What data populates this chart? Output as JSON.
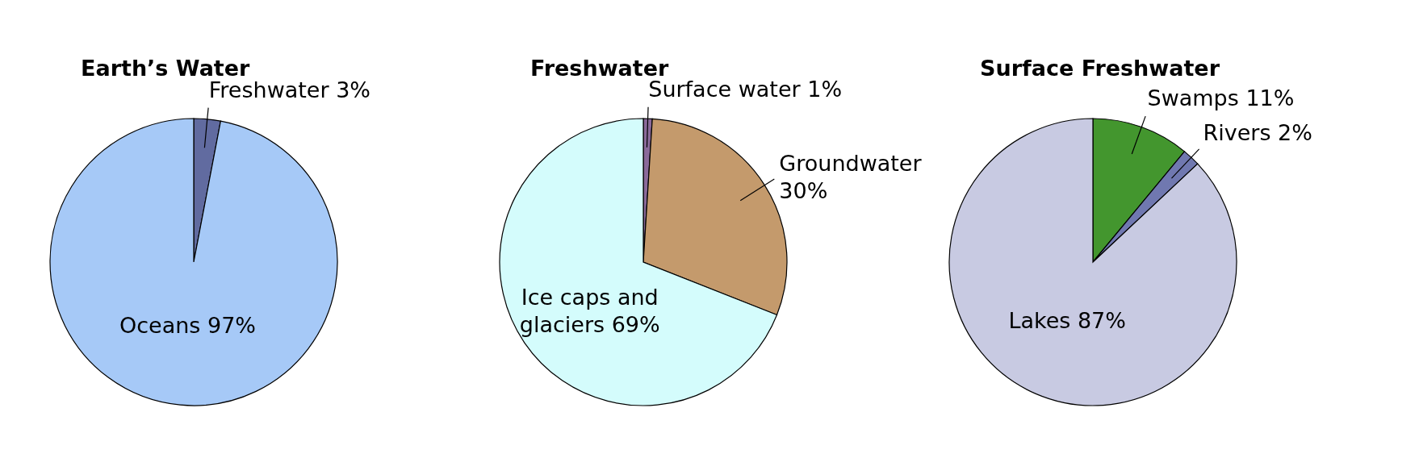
{
  "chart_data": [
    {
      "type": "pie",
      "title": "Earth’s Water",
      "categories": [
        "Freshwater",
        "Oceans"
      ],
      "values": [
        3,
        97
      ],
      "colors": [
        "#616ba0",
        "#a6c9f7"
      ],
      "value_labels": [
        "3%",
        "97%"
      ]
    },
    {
      "type": "pie",
      "title": "Freshwater",
      "categories": [
        "Surface water",
        "Groundwater",
        "Ice caps and glaciers"
      ],
      "values": [
        1,
        30,
        69
      ],
      "colors": [
        "#8a6a9a",
        "#c49a6c",
        "#d4fcfc"
      ],
      "value_labels": [
        "1%",
        "30%",
        "69%"
      ]
    },
    {
      "type": "pie",
      "title": "Surface Freshwater",
      "categories": [
        "Swamps",
        "Rivers",
        "Lakes"
      ],
      "values": [
        11,
        2,
        87
      ],
      "colors": [
        "#43962e",
        "#7078b0",
        "#c8cae2"
      ],
      "value_labels": [
        "11%",
        "2%",
        "87%"
      ]
    }
  ]
}
